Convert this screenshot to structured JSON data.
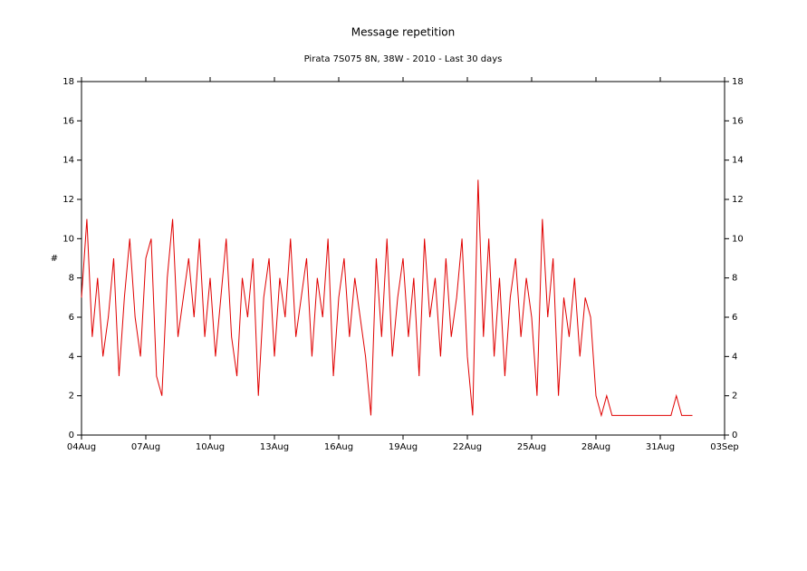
{
  "chart_data": {
    "type": "line",
    "title": "Message repetition",
    "subtitle": "Pirata 7S075 8N, 38W - 2010 - Last 30 days",
    "y_label": "#",
    "xlim": [
      0,
      30
    ],
    "xticks": [
      {
        "value": 0,
        "label": "04Aug"
      },
      {
        "value": 3,
        "label": "07Aug"
      },
      {
        "value": 6,
        "label": "10Aug"
      },
      {
        "value": 9,
        "label": "13Aug"
      },
      {
        "value": 12,
        "label": "16Aug"
      },
      {
        "value": 15,
        "label": "19Aug"
      },
      {
        "value": 18,
        "label": "22Aug"
      },
      {
        "value": 21,
        "label": "25Aug"
      },
      {
        "value": 24,
        "label": "28Aug"
      },
      {
        "value": 27,
        "label": "31Aug"
      },
      {
        "value": 30,
        "label": "03Sep"
      }
    ],
    "ylim": [
      0,
      18
    ],
    "yticks": [
      0,
      2,
      4,
      6,
      8,
      10,
      12,
      14,
      16,
      18
    ],
    "x": [
      0,
      0.25,
      0.5,
      0.75,
      1,
      1.25,
      1.5,
      1.75,
      2,
      2.25,
      2.5,
      2.75,
      3,
      3.25,
      3.5,
      3.75,
      4,
      4.25,
      4.5,
      4.75,
      5,
      5.25,
      5.5,
      5.75,
      6,
      6.25,
      6.5,
      6.75,
      7,
      7.25,
      7.5,
      7.75,
      8,
      8.25,
      8.5,
      8.75,
      9,
      9.25,
      9.5,
      9.75,
      10,
      10.25,
      10.5,
      10.75,
      11,
      11.25,
      11.5,
      11.75,
      12,
      12.25,
      12.5,
      12.75,
      13,
      13.25,
      13.5,
      13.75,
      14,
      14.25,
      14.5,
      14.75,
      15,
      15.25,
      15.5,
      15.75,
      16,
      16.25,
      16.5,
      16.75,
      17,
      17.25,
      17.5,
      17.75,
      18,
      18.25,
      18.5,
      18.75,
      19,
      19.25,
      19.5,
      19.75,
      20,
      20.25,
      20.5,
      20.75,
      21,
      21.25,
      21.5,
      21.75,
      22,
      22.25,
      22.5,
      22.75,
      23,
      23.25,
      23.5,
      23.75,
      24,
      24.25,
      24.5,
      24.75,
      25,
      25.25,
      25.5,
      25.75,
      26,
      26.25,
      26.5,
      26.75,
      27,
      27.25,
      27.5,
      27.75,
      28,
      28.25,
      28.5
    ],
    "series": [
      {
        "color": "#e00000",
        "values": [
          7,
          11,
          5,
          8,
          4,
          6,
          9,
          3,
          7,
          10,
          6,
          4,
          9,
          10,
          3,
          2,
          8,
          11,
          5,
          7,
          9,
          6,
          10,
          5,
          8,
          4,
          7,
          10,
          5,
          3,
          8,
          6,
          9,
          2,
          7,
          9,
          4,
          8,
          6,
          10,
          5,
          7,
          9,
          4,
          8,
          6,
          10,
          3,
          7,
          9,
          5,
          8,
          6,
          4,
          1,
          9,
          5,
          10,
          4,
          7,
          9,
          5,
          8,
          3,
          10,
          6,
          8,
          4,
          9,
          5,
          7,
          10,
          4,
          1,
          13,
          5,
          10,
          4,
          8,
          3,
          7,
          9,
          5,
          8,
          6,
          2,
          11,
          6,
          9,
          2,
          7,
          5,
          8,
          4,
          7,
          6,
          2,
          1,
          2,
          1,
          1,
          1,
          1,
          1,
          1,
          1,
          1,
          1,
          1,
          1,
          1,
          2,
          1,
          1,
          1
        ]
      }
    ]
  }
}
